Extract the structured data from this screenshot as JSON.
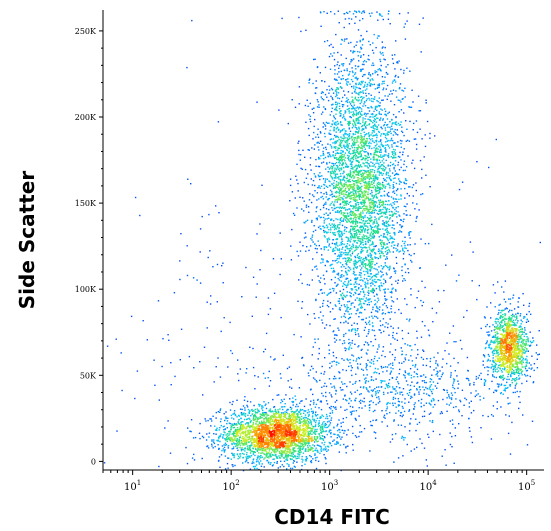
{
  "chart_data": {
    "type": "scatter",
    "style": "flow-cytometry density dot plot (pseudocolor)",
    "xlabel": "CD14 FITC",
    "ylabel": "Side Scatter",
    "xscale": "log",
    "xlim": [
      5,
      150000
    ],
    "ylim": [
      -5000,
      262144
    ],
    "x_ticks": [
      {
        "value": 10,
        "base": "10",
        "exp": "1"
      },
      {
        "value": 100,
        "base": "10",
        "exp": "2"
      },
      {
        "value": 1000,
        "base": "10",
        "exp": "3"
      },
      {
        "value": 10000,
        "base": "10",
        "exp": "4"
      },
      {
        "value": 100000,
        "base": "10",
        "exp": "5"
      }
    ],
    "y_ticks": [
      {
        "value": 0,
        "label": "0"
      },
      {
        "value": 50000,
        "label": "50K"
      },
      {
        "value": 100000,
        "label": "100K"
      },
      {
        "value": 150000,
        "label": "150K"
      },
      {
        "value": 200000,
        "label": "200K"
      },
      {
        "value": 250000,
        "label": "250K"
      }
    ],
    "populations": [
      {
        "name_hint": "lymphocytes",
        "center_log10_x": 2.45,
        "center_y": 16000,
        "sd_log10_x": 0.28,
        "sd_y": 8000,
        "weight": 0.3
      },
      {
        "name_hint": "granulocytes",
        "center_log10_x": 3.3,
        "center_y": 160000,
        "sd_log10_x": 0.24,
        "sd_y": 42000,
        "weight": 0.45
      },
      {
        "name_hint": "monocytes",
        "center_log10_x": 4.82,
        "center_y": 67000,
        "sd_log10_x": 0.1,
        "sd_y": 11000,
        "weight": 0.13
      },
      {
        "name_hint": "bridge",
        "center_log10_x": 3.7,
        "center_y": 42000,
        "sd_log10_x": 0.55,
        "sd_y": 14000,
        "weight": 0.07
      },
      {
        "name_hint": "background",
        "center_log10_x": 3.0,
        "center_y": 60000,
        "sd_log10_x": 1.2,
        "sd_y": 60000,
        "weight": 0.05
      }
    ],
    "density_colormap": [
      "#1020d0",
      "#0060ff",
      "#00c0ff",
      "#20e080",
      "#d0f020",
      "#ff9000",
      "#ff1000"
    ],
    "grid": false,
    "legend": "none"
  }
}
